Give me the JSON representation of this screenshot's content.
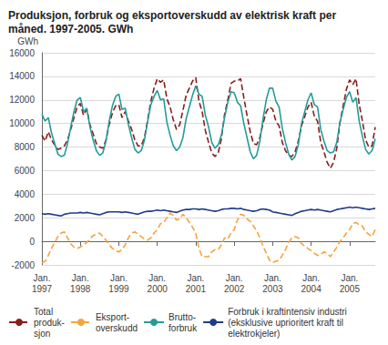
{
  "chart_data": {
    "type": "line",
    "title": "Produksjon, forbruk og eksportoverskudd av elektrisk kraft per måned. 1997-2005. GWh",
    "y_label": "GWh",
    "categories": [
      "Jan.\n1997",
      null,
      null,
      null,
      null,
      null,
      null,
      null,
      null,
      null,
      null,
      null,
      "Jan.\n1998",
      null,
      null,
      null,
      null,
      null,
      null,
      null,
      null,
      null,
      null,
      null,
      "Jan.\n1999",
      null,
      null,
      null,
      null,
      null,
      null,
      null,
      null,
      null,
      null,
      null,
      "Jan.\n2000",
      null,
      null,
      null,
      null,
      null,
      null,
      null,
      null,
      null,
      null,
      null,
      "Jan.\n2001",
      null,
      null,
      null,
      null,
      null,
      null,
      null,
      null,
      null,
      null,
      null,
      "Jan.\n2002",
      null,
      null,
      null,
      null,
      null,
      null,
      null,
      null,
      null,
      null,
      null,
      "Jan.\n2003",
      null,
      null,
      null,
      null,
      null,
      null,
      null,
      null,
      null,
      null,
      null,
      "Jan.\n2004",
      null,
      null,
      null,
      null,
      null,
      null,
      null,
      null,
      null,
      null,
      null,
      "Jan.\n2005",
      null,
      null,
      null,
      null,
      null,
      null,
      null,
      null
    ],
    "series": [
      {
        "name": "Total\nproduk-\nsjon",
        "color": "#8b1c1c",
        "line_style": "dashed",
        "values": [
          9000,
          8500,
          9300,
          8600,
          8200,
          7800,
          7900,
          8100,
          8600,
          9500,
          10500,
          11400,
          11700,
          10700,
          11200,
          9900,
          9100,
          8300,
          8000,
          7900,
          8600,
          9900,
          10900,
          11500,
          11600,
          10500,
          11000,
          10200,
          9500,
          8600,
          8100,
          8100,
          8800,
          10300,
          11900,
          13000,
          13800,
          13500,
          13700,
          12100,
          11400,
          10300,
          9500,
          9900,
          11100,
          12400,
          13000,
          13600,
          13900,
          11900,
          11000,
          9400,
          8400,
          7500,
          7200,
          7500,
          8700,
          10800,
          12000,
          13400,
          13600,
          13600,
          13800,
          12200,
          10700,
          9300,
          8300,
          8200,
          8800,
          10000,
          11000,
          11400,
          11200,
          10200,
          9800,
          8400,
          7700,
          7300,
          7200,
          7600,
          8500,
          9800,
          10600,
          11400,
          11800,
          10600,
          10200,
          8400,
          7600,
          6700,
          6200,
          6700,
          7900,
          10100,
          11500,
          12900,
          13700,
          13300,
          13800,
          11600,
          10200,
          8600,
          8000,
          8100,
          9700
        ]
      },
      {
        "name": "Eksport-\noverskudd",
        "color": "#f4a340",
        "line_style": "dashed",
        "values": [
          -1800,
          -1700,
          -1200,
          -600,
          -100,
          400,
          700,
          800,
          300,
          -200,
          -500,
          -600,
          -500,
          -300,
          -100,
          200,
          500,
          600,
          700,
          400,
          100,
          -300,
          -600,
          -800,
          -900,
          -700,
          -300,
          300,
          700,
          800,
          600,
          400,
          200,
          100,
          300,
          700,
          1000,
          1500,
          1600,
          2000,
          2400,
          2200,
          1800,
          1900,
          2300,
          2000,
          1600,
          1200,
          700,
          -600,
          -1300,
          -1300,
          -1300,
          -900,
          -700,
          -700,
          -300,
          300,
          200,
          700,
          1000,
          1800,
          2300,
          2200,
          1900,
          1700,
          1300,
          900,
          300,
          -400,
          -1000,
          -1600,
          -1800,
          -1700,
          -1600,
          -1200,
          -700,
          -100,
          300,
          400,
          300,
          -200,
          -400,
          -600,
          -800,
          -1000,
          -1200,
          -1100,
          -900,
          -1000,
          -1300,
          -900,
          -500,
          0,
          300,
          700,
          1000,
          1500,
          1600,
          1400,
          1300,
          800,
          600,
          400,
          1000
        ]
      },
      {
        "name": "Brutto-\nforbruk",
        "color": "#239c98",
        "line_style": "solid",
        "values": [
          10800,
          10200,
          10500,
          9200,
          8300,
          7400,
          7200,
          7300,
          8300,
          9700,
          11000,
          12000,
          12200,
          11000,
          11300,
          9700,
          8600,
          7700,
          7300,
          7500,
          8500,
          10200,
          11500,
          12300,
          12500,
          11200,
          11300,
          9900,
          8800,
          7800,
          7500,
          7700,
          8600,
          10200,
          11600,
          12300,
          12800,
          12000,
          12100,
          10100,
          9000,
          8100,
          7700,
          8000,
          8800,
          10400,
          11400,
          12400,
          13200,
          12500,
          12300,
          10700,
          9700,
          8400,
          7900,
          8200,
          9000,
          10500,
          11800,
          12700,
          12600,
          11800,
          11500,
          10000,
          8800,
          7600,
          7000,
          7300,
          8500,
          10400,
          12000,
          13000,
          13000,
          11900,
          11400,
          9600,
          8400,
          7400,
          6900,
          7200,
          8200,
          10000,
          11000,
          12000,
          12600,
          11600,
          11400,
          9500,
          8500,
          7700,
          7500,
          7600,
          8400,
          10100,
          11200,
          12200,
          12700,
          11800,
          12200,
          10200,
          8900,
          7800,
          7400,
          7700,
          8700
        ]
      },
      {
        "name": "Forbruk i kraftintensiv industri\n(eksklusive uprioritert kraft til\nelektrokjeler)",
        "color": "#1f3c88",
        "line_style": "solid",
        "values": [
          2350,
          2300,
          2350,
          2300,
          2250,
          2200,
          2150,
          2300,
          2350,
          2400,
          2400,
          2400,
          2450,
          2400,
          2450,
          2400,
          2350,
          2300,
          2250,
          2350,
          2450,
          2500,
          2500,
          2500,
          2500,
          2450,
          2500,
          2450,
          2400,
          2350,
          2300,
          2400,
          2500,
          2550,
          2550,
          2600,
          2650,
          2600,
          2650,
          2600,
          2550,
          2500,
          2450,
          2550,
          2650,
          2700,
          2700,
          2750,
          2750,
          2700,
          2750,
          2700,
          2650,
          2600,
          2550,
          2600,
          2700,
          2750,
          2750,
          2800,
          2800,
          2750,
          2800,
          2700,
          2650,
          2600,
          2550,
          2600,
          2700,
          2750,
          2700,
          2650,
          2500,
          2450,
          2400,
          2350,
          2300,
          2250,
          2200,
          2350,
          2450,
          2550,
          2600,
          2650,
          2700,
          2650,
          2700,
          2650,
          2600,
          2550,
          2500,
          2600,
          2700,
          2750,
          2800,
          2850,
          2900,
          2850,
          2900,
          2850,
          2800,
          2750,
          2700,
          2750,
          2800
        ]
      }
    ],
    "ylim": [
      -2000,
      16000
    ],
    "yticks": [
      -2000,
      0,
      2000,
      4000,
      6000,
      8000,
      10000,
      12000,
      14000,
      16000
    ],
    "grid": true,
    "legend": "bottom"
  }
}
